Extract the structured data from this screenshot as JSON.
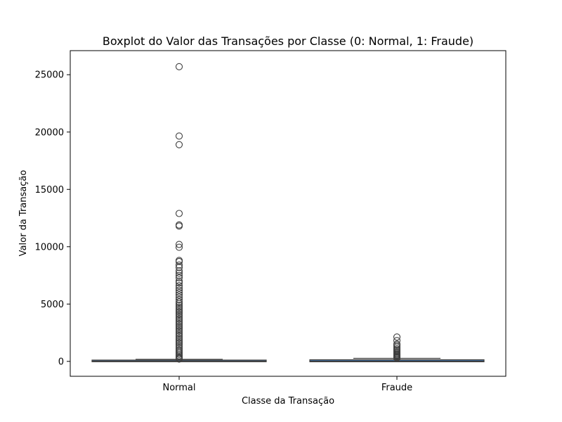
{
  "chart_data": {
    "type": "boxplot",
    "title": "Boxplot do Valor das Transações por Classe (0: Normal, 1: Fraude)",
    "xlabel": "Classe da Transação",
    "ylabel": "Valor da Transação",
    "categories": [
      "Normal",
      "Fraude"
    ],
    "ylim": [
      -1300,
      27100
    ],
    "yticks": [
      0,
      5000,
      10000,
      15000,
      20000,
      25000
    ],
    "ytick_labels": [
      "0",
      "5000",
      "10000",
      "15000",
      "20000",
      "25000"
    ],
    "grid": false,
    "legend": "none",
    "colors": {
      "box_fill": "#3d6b9f",
      "line": "#3f3f3f",
      "axis": "#000000"
    },
    "series": [
      {
        "category": "Normal",
        "whisker_low": 0,
        "q1": 5,
        "median": 22,
        "q3": 77,
        "whisker_high": 185,
        "outliers": [
          25700,
          19650,
          18900,
          12900,
          11900,
          11800,
          10200,
          9950,
          8800,
          8700,
          8400,
          8200,
          7900,
          7700,
          7500,
          7300,
          7000,
          6850,
          6600,
          6400,
          6200,
          6000,
          5800,
          5600,
          5400,
          5200,
          5050,
          4900,
          4750,
          4600,
          4450,
          4300,
          4150,
          4000,
          3850,
          3700,
          3550,
          3400,
          3250,
          3100,
          2950,
          2800,
          2650,
          2500,
          2350,
          2200,
          2050,
          1900,
          1750,
          1600,
          1450,
          1300,
          1150,
          1000,
          870,
          740,
          610,
          490,
          380,
          280,
          200
        ]
      },
      {
        "category": "Fraude",
        "whisker_low": 0,
        "q1": 1,
        "median": 9,
        "q3": 106,
        "whisker_high": 262,
        "outliers": [
          2125,
          1810,
          1500,
          1400,
          1250,
          1100,
          1000,
          900,
          800,
          700,
          620,
          540,
          470,
          400,
          340,
          290
        ]
      }
    ]
  }
}
